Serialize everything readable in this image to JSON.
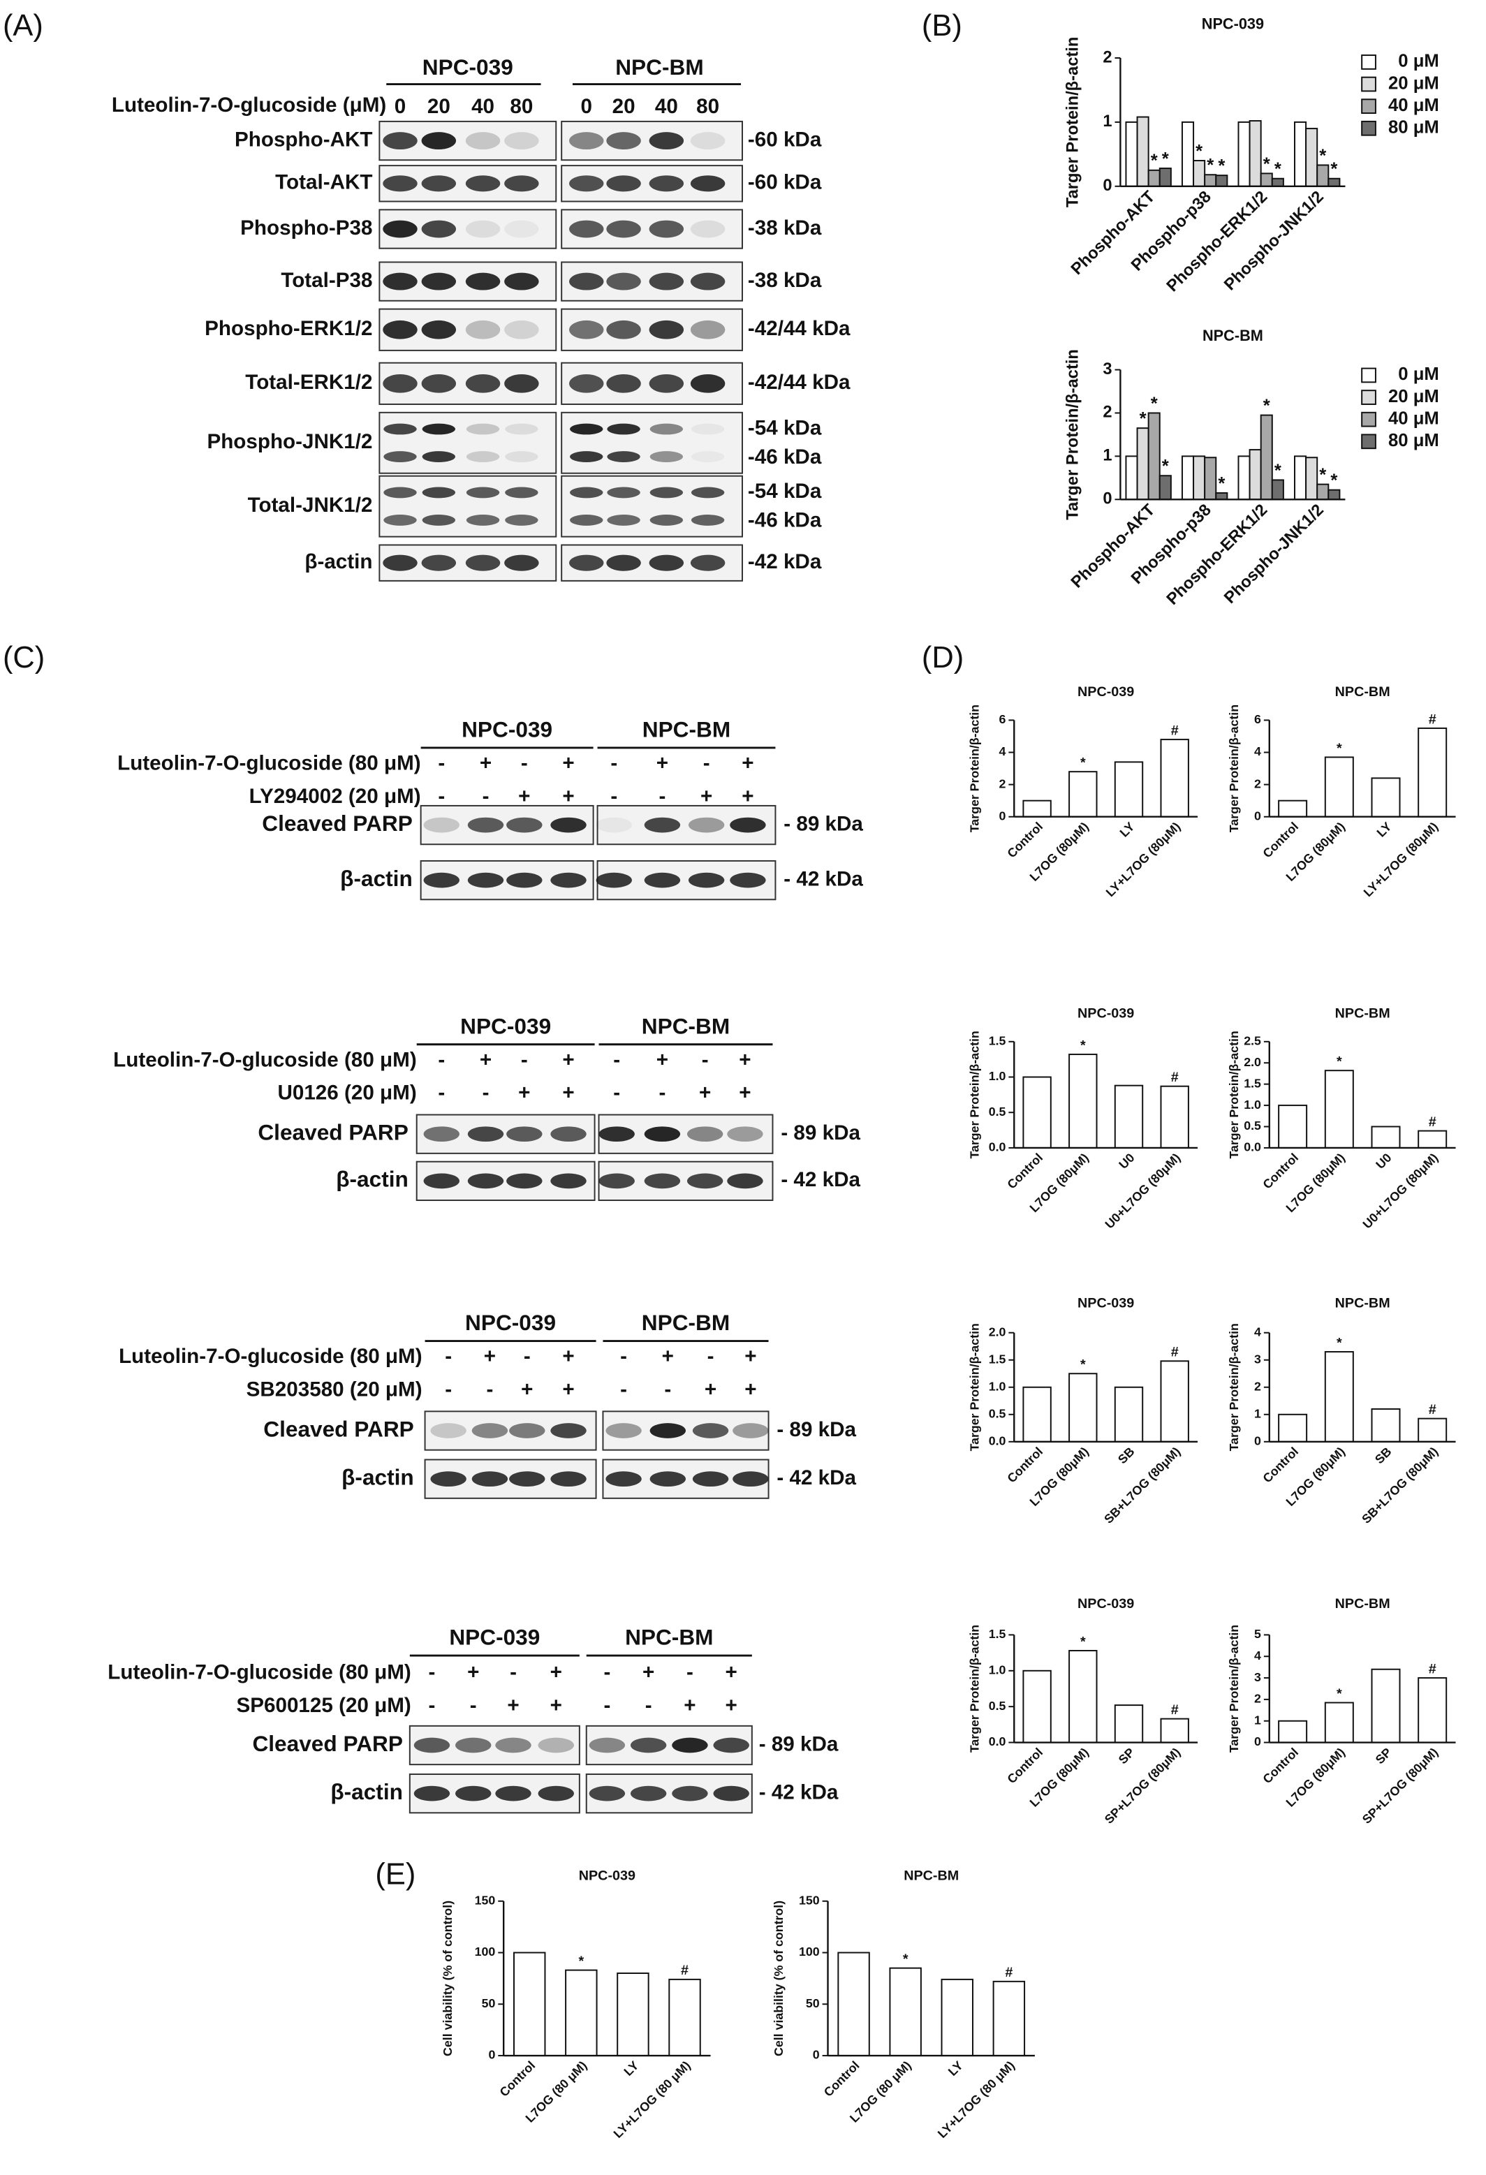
{
  "panel_labels": [
    "(A)",
    "(B)",
    "(C)",
    "(D)",
    "(E)"
  ],
  "figure_a": {
    "groups": [
      "NPC-039",
      "NPC-BM"
    ],
    "treatment": "Luteolin-7-O-glucoside (μM)",
    "doses": [
      "0",
      "20",
      "40",
      "80",
      "0",
      "20",
      "40",
      "80"
    ],
    "rows": [
      {
        "label": "Phospho-AKT",
        "kda": [
          "-60 kDa"
        ]
      },
      {
        "label": "Total-AKT",
        "kda": [
          "-60 kDa"
        ]
      },
      {
        "label": "Phospho-P38",
        "kda": [
          "-38 kDa"
        ]
      },
      {
        "label": "Total-P38",
        "kda": [
          "-38 kDa"
        ]
      },
      {
        "label": "Phospho-ERK1/2",
        "kda": [
          "-42/44 kDa"
        ]
      },
      {
        "label": "Total-ERK1/2",
        "kda": [
          "-42/44 kDa"
        ]
      },
      {
        "label": "Phospho-JNK1/2",
        "kda": [
          "-54 kDa",
          "-46 kDa"
        ]
      },
      {
        "label": "Total-JNK1/2",
        "kda": [
          "-54 kDa",
          "-46 kDa"
        ]
      },
      {
        "label": "β-actin",
        "kda": [
          "-42 kDa"
        ]
      }
    ]
  },
  "figure_c": {
    "blots": [
      {
        "groups": [
          "NPC-039",
          "NPC-BM"
        ],
        "treatments": [
          "Luteolin-7-O-glucoside (80 μM)",
          "LY294002 (20 μM)"
        ],
        "signs": [
          [
            "-",
            "+",
            "-",
            "+",
            "-",
            "+",
            "-",
            "+"
          ],
          [
            "-",
            "-",
            "+",
            "+",
            "-",
            "-",
            "+",
            "+"
          ]
        ],
        "rows": [
          {
            "label": "Cleaved  PARP",
            "kda": [
              "- 89 kDa"
            ]
          },
          {
            "label": "β-actin",
            "kda": [
              "- 42 kDa"
            ]
          }
        ]
      },
      {
        "groups": [
          "NPC-039",
          "NPC-BM"
        ],
        "treatments": [
          "Luteolin-7-O-glucoside (80 μM)",
          "U0126 (20 μM)"
        ],
        "signs": [
          [
            "-",
            "+",
            "-",
            "+",
            "-",
            "+",
            "-",
            "+"
          ],
          [
            "-",
            "-",
            "+",
            "+",
            "-",
            "-",
            "+",
            "+"
          ]
        ],
        "rows": [
          {
            "label": "Cleaved  PARP",
            "kda": [
              "- 89 kDa"
            ]
          },
          {
            "label": "β-actin",
            "kda": [
              "- 42 kDa"
            ]
          }
        ]
      },
      {
        "groups": [
          "NPC-039",
          "NPC-BM"
        ],
        "treatments": [
          "Luteolin-7-O-glucoside (80 μM)",
          "SB203580 (20 μM)"
        ],
        "signs": [
          [
            "-",
            "+",
            "-",
            "+",
            "-",
            "+",
            "-",
            "+"
          ],
          [
            "-",
            "-",
            "+",
            "+",
            "-",
            "-",
            "+",
            "+"
          ]
        ],
        "rows": [
          {
            "label": "Cleaved  PARP",
            "kda": [
              "- 89 kDa"
            ]
          },
          {
            "label": "β-actin",
            "kda": [
              "- 42 kDa"
            ]
          }
        ]
      },
      {
        "groups": [
          "NPC-039",
          "NPC-BM"
        ],
        "treatments": [
          "Luteolin-7-O-glucoside (80 μM)",
          "SP600125 (20 μM)"
        ],
        "signs": [
          [
            "-",
            "+",
            "-",
            "+",
            "-",
            "+",
            "-",
            "+"
          ],
          [
            "-",
            "-",
            "+",
            "+",
            "-",
            "-",
            "+",
            "+"
          ]
        ],
        "rows": [
          {
            "label": "Cleaved  PARP",
            "kda": [
              "- 89 kDa"
            ]
          },
          {
            "label": "β-actin",
            "kda": [
              "- 42 kDa"
            ]
          }
        ]
      }
    ]
  },
  "chart_data": [
    {
      "type": "bar",
      "title": "NPC-039",
      "y_label": "Targer Protein/β-actin",
      "categories": [
        "Phospho-AKT",
        "Phospho-p38",
        "Phospho-ERK1/2",
        "Phospho-JNK1/2"
      ],
      "series": [
        {
          "name": "0 μM",
          "color": "#ffffff",
          "values": [
            1,
            1,
            1,
            1
          ],
          "markers": [
            null,
            null,
            null,
            null
          ]
        },
        {
          "name": "20 μM",
          "color": "#dcdcdc",
          "values": [
            1.08,
            0.4,
            1.02,
            0.9
          ],
          "markers": [
            null,
            "*",
            null,
            null
          ]
        },
        {
          "name": "40 μM",
          "color": "#a8a8a8",
          "values": [
            0.25,
            0.18,
            0.2,
            0.33
          ],
          "markers": [
            "*",
            "*",
            "*",
            "*"
          ]
        },
        {
          "name": "80 μM",
          "color": "#6e6e6e",
          "values": [
            0.28,
            0.17,
            0.12,
            0.12
          ],
          "markers": [
            "*",
            "*",
            "*",
            "*"
          ]
        }
      ],
      "ylim": [
        0,
        2
      ],
      "yticks": [
        0,
        1,
        2
      ]
    },
    {
      "type": "bar",
      "title": "NPC-BM",
      "y_label": "Targer Protein/β-actin",
      "categories": [
        "Phospho-AKT",
        "Phospho-p38",
        "Phospho-ERK1/2",
        "Phospho-JNK1/2"
      ],
      "series": [
        {
          "name": "0 μM",
          "color": "#ffffff",
          "values": [
            1,
            1,
            1,
            1
          ],
          "markers": [
            null,
            null,
            null,
            null
          ]
        },
        {
          "name": "20 μM",
          "color": "#dcdcdc",
          "values": [
            1.65,
            1,
            1.15,
            0.97
          ],
          "markers": [
            "*",
            null,
            null,
            null
          ]
        },
        {
          "name": "40 μM",
          "color": "#a8a8a8",
          "values": [
            2.0,
            0.97,
            1.95,
            0.35
          ],
          "markers": [
            "*",
            null,
            "*",
            "*"
          ]
        },
        {
          "name": "80 μM",
          "color": "#6e6e6e",
          "values": [
            0.55,
            0.15,
            0.45,
            0.22
          ],
          "markers": [
            "*",
            "*",
            "*",
            "*"
          ]
        }
      ],
      "ylim": [
        0,
        3
      ],
      "yticks": [
        0,
        1,
        2,
        3
      ]
    },
    {
      "type": "bar",
      "title": "NPC-039",
      "y_label": "Targer Protein/β-actin",
      "categories": [
        "Control",
        "L7OG (80μM)",
        "LY",
        "LY+L7OG (80μM)"
      ],
      "values": [
        1,
        2.8,
        3.4,
        4.8
      ],
      "markers": [
        null,
        "*",
        null,
        "#"
      ],
      "color": "#ffffff",
      "ylim": [
        0,
        6
      ],
      "yticks": [
        0,
        2,
        4,
        6
      ]
    },
    {
      "type": "bar",
      "title": "NPC-BM",
      "y_label": "Targer Protein/β-actin",
      "categories": [
        "Control",
        "L7OG (80μM)",
        "LY",
        "LY+L7OG (80μM)"
      ],
      "values": [
        1,
        3.7,
        2.4,
        5.5
      ],
      "markers": [
        null,
        "*",
        null,
        "#"
      ],
      "color": "#ffffff",
      "ylim": [
        0,
        6
      ],
      "yticks": [
        0,
        2,
        4,
        6
      ]
    },
    {
      "type": "bar",
      "title": "NPC-039",
      "y_label": "Targer Protein/β-actin",
      "categories": [
        "Control",
        "L7OG (80μM)",
        "U0",
        "U0+L7OG (80μM)"
      ],
      "values": [
        1,
        1.32,
        0.88,
        0.87
      ],
      "markers": [
        null,
        "*",
        null,
        "#"
      ],
      "color": "#ffffff",
      "ylim": [
        0,
        1.5
      ],
      "yticks": [
        {
          "value": 0,
          "label": "0.0"
        },
        0.5,
        {
          "value": 1,
          "label": "1.0"
        },
        1.5
      ]
    },
    {
      "type": "bar",
      "title": "NPC-BM",
      "y_label": "Targer Protein/β-actin",
      "categories": [
        "Control",
        "L7OG (80μM)",
        "U0",
        "U0+L7OG (80μM)"
      ],
      "values": [
        1,
        1.82,
        0.5,
        0.4
      ],
      "markers": [
        null,
        "*",
        null,
        "#"
      ],
      "color": "#ffffff",
      "ylim": [
        0,
        2.5
      ],
      "yticks": [
        {
          "value": 0,
          "label": "0.0"
        },
        0.5,
        {
          "value": 1,
          "label": "1.0"
        },
        1.5,
        {
          "value": 2,
          "label": "2.0"
        },
        2.5
      ]
    },
    {
      "type": "bar",
      "title": "NPC-039",
      "y_label": "Targer Protein/β-actin",
      "categories": [
        "Control",
        "L7OG (80μM)",
        "SB",
        "SB+L7OG (80μM)"
      ],
      "values": [
        1,
        1.25,
        1.0,
        1.48
      ],
      "markers": [
        null,
        "*",
        null,
        "#"
      ],
      "color": "#ffffff",
      "ylim": [
        0,
        2
      ],
      "yticks": [
        {
          "value": 0,
          "label": "0.0"
        },
        0.5,
        {
          "value": 1,
          "label": "1.0"
        },
        1.5,
        {
          "value": 2,
          "label": "2.0"
        }
      ]
    },
    {
      "type": "bar",
      "title": "NPC-BM",
      "y_label": "Targer Protein/β-actin",
      "categories": [
        "Control",
        "L7OG (80μM)",
        "SB",
        "SB+L7OG (80μM)"
      ],
      "values": [
        1,
        3.3,
        1.2,
        0.85
      ],
      "markers": [
        null,
        "*",
        null,
        "#"
      ],
      "color": "#ffffff",
      "ylim": [
        0,
        4
      ],
      "yticks": [
        0,
        1,
        2,
        3,
        4
      ]
    },
    {
      "type": "bar",
      "title": "NPC-039",
      "y_label": "Targer Protein/β-actin",
      "categories": [
        "Control",
        "L7OG (80μM)",
        "SP",
        "SP+L7OG (80μM)"
      ],
      "values": [
        1,
        1.28,
        0.52,
        0.33
      ],
      "markers": [
        null,
        "*",
        null,
        "#"
      ],
      "color": "#ffffff",
      "ylim": [
        0,
        1.5
      ],
      "yticks": [
        {
          "value": 0,
          "label": "0.0"
        },
        0.5,
        {
          "value": 1,
          "label": "1.0"
        },
        1.5
      ]
    },
    {
      "type": "bar",
      "title": "NPC-BM",
      "y_label": "Targer Protein/β-actin",
      "categories": [
        "Control",
        "L7OG (80μM)",
        "SP",
        "SP+L7OG (80μM)"
      ],
      "values": [
        1,
        1.85,
        3.4,
        3.0
      ],
      "markers": [
        null,
        "*",
        null,
        "#"
      ],
      "color": "#ffffff",
      "ylim": [
        0,
        5
      ],
      "yticks": [
        0,
        1,
        2,
        3,
        4,
        5
      ]
    },
    {
      "type": "bar",
      "title": "NPC-039",
      "y_label": "Cell viability (% of control)",
      "categories": [
        "Control",
        "L7OG (80 μM)",
        "LY",
        "LY+L7OG (80 μM)"
      ],
      "values": [
        100,
        83,
        80,
        74
      ],
      "markers": [
        null,
        "*",
        null,
        "#"
      ],
      "color": "#ffffff",
      "ylim": [
        0,
        150
      ],
      "yticks": [
        0,
        50,
        100,
        150
      ]
    },
    {
      "type": "bar",
      "title": "NPC-BM",
      "y_label": "Cell viability (% of control)",
      "categories": [
        "Control",
        "L7OG (80 μM)",
        "LY",
        "LY+L7OG (80 μM)"
      ],
      "values": [
        100,
        85,
        74,
        72
      ],
      "markers": [
        null,
        "*",
        null,
        "#"
      ],
      "color": "#ffffff",
      "ylim": [
        0,
        150
      ],
      "yticks": [
        0,
        50,
        100,
        150
      ]
    }
  ]
}
